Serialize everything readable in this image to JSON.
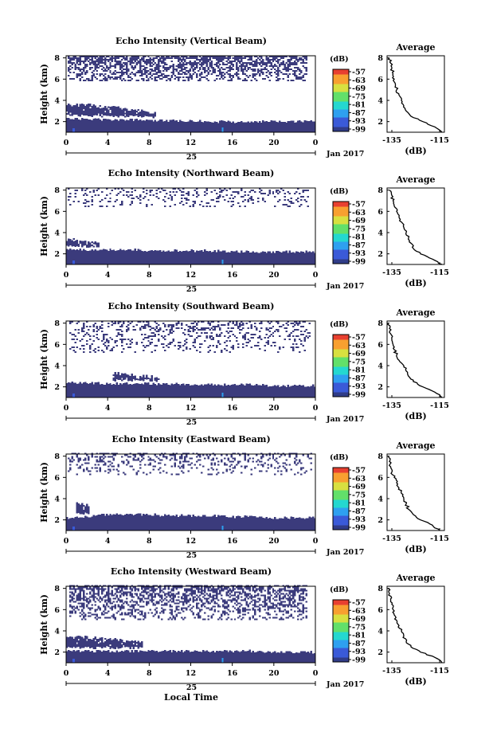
{
  "figure": {
    "xlabel": "Local Time",
    "date_label": "Jan 2017",
    "day_label": "25",
    "ylabel": "Height (km)",
    "x_ticks": [
      "0",
      "4",
      "8",
      "12",
      "16",
      "20",
      "0"
    ],
    "y_ticks": [
      "2",
      "4",
      "6",
      "8"
    ],
    "colorbar_unit": "(dB)",
    "colorbar_ticks": [
      "-57",
      "-63",
      "-69",
      "-75",
      "-81",
      "-87",
      "-93",
      "-99"
    ],
    "colorbar_colors": [
      "#303c88",
      "#3a5ad8",
      "#2ea0f0",
      "#24d8d0",
      "#62e06a",
      "#d8e040",
      "#f8a030",
      "#e84030"
    ],
    "echo_color": "#3b3b7c",
    "avg_title": "Average",
    "avg_xlabel": "(dB)",
    "avg_ticks": [
      "-135",
      "-115"
    ]
  },
  "chart_data": [
    {
      "type": "heatmap",
      "title": "Echo Intensity (Vertical Beam)",
      "xlabel": "Local Time",
      "ylabel": "Height (km)",
      "xlim": [
        0,
        24
      ],
      "ylim": [
        1,
        8.2
      ],
      "main_layer_top_km": [
        2.3,
        2.2,
        2.2,
        2.2,
        2.1,
        2.1,
        2.1,
        2.0,
        2.0,
        2.0,
        2.0,
        2.0,
        2.0
      ],
      "mid_layer": {
        "t_range": [
          0,
          8.6
        ],
        "top_km": [
          3.6,
          3.5,
          3.5,
          3.4,
          3.3,
          3.2,
          3.1,
          2.9,
          2.7
        ]
      },
      "upper_echo": {
        "height_km": [
          5.8,
          8.2
        ],
        "t_range": [
          0.2,
          23.2
        ],
        "coverage": 0.75
      },
      "profile": {
        "title": "Average",
        "xlabel": "(dB)",
        "xlim": [
          -137,
          -113
        ],
        "height_km": [
          1.0,
          1.5,
          2.0,
          2.5,
          3.0,
          3.5,
          4.0,
          4.5,
          5.0,
          5.5,
          6.0,
          6.5,
          7.0,
          7.5,
          8.0
        ],
        "values_db": [
          -114,
          -117,
          -122,
          -127,
          -129,
          -130,
          -131,
          -132,
          -133,
          -133.5,
          -134,
          -134.5,
          -135,
          -135.5,
          -136
        ]
      }
    },
    {
      "type": "heatmap",
      "title": "Echo Intensity (Northward Beam)",
      "xlabel": "Local Time",
      "ylabel": "Height (km)",
      "xlim": [
        0,
        24
      ],
      "ylim": [
        1,
        8.2
      ],
      "main_layer_top_km": [
        2.5,
        2.4,
        2.4,
        2.4,
        2.3,
        2.3,
        2.3,
        2.3,
        2.2,
        2.2,
        2.2,
        2.2,
        2.2
      ],
      "mid_layer": {
        "t_range": [
          0,
          3.2
        ],
        "top_km": [
          3.3,
          3.1,
          2.9
        ]
      },
      "upper_echo": {
        "height_km": [
          6.4,
          8.2
        ],
        "t_range": [
          0.2,
          23.4
        ],
        "coverage": 0.25
      },
      "profile": {
        "title": "Average",
        "xlabel": "(dB)",
        "xlim": [
          -137,
          -113
        ],
        "height_km": [
          1.0,
          1.5,
          2.0,
          2.5,
          3.0,
          3.5,
          4.0,
          4.5,
          5.0,
          5.5,
          6.0,
          6.5,
          7.0,
          7.5,
          8.0
        ],
        "values_db": [
          -114,
          -118,
          -123,
          -126,
          -127,
          -128,
          -129,
          -130,
          -131,
          -132,
          -133,
          -134,
          -134.5,
          -135,
          -136
        ]
      }
    },
    {
      "type": "heatmap",
      "title": "Echo Intensity (Southward Beam)",
      "xlabel": "Local Time",
      "ylabel": "Height (km)",
      "xlim": [
        0,
        24
      ],
      "ylim": [
        1,
        8.2
      ],
      "main_layer_top_km": [
        2.4,
        2.4,
        2.3,
        2.3,
        2.3,
        2.3,
        2.2,
        2.2,
        2.2,
        2.2,
        2.1,
        2.1,
        2.1
      ],
      "mid_layer": {
        "t_range": [
          4.5,
          9.0
        ],
        "top_km": [
          3.2,
          3.0,
          2.8
        ]
      },
      "upper_echo": {
        "height_km": [
          5.2,
          8.2
        ],
        "t_range": [
          0.3,
          23.5
        ],
        "coverage": 0.3
      },
      "profile": {
        "title": "Average",
        "xlabel": "(dB)",
        "xlim": [
          -137,
          -113
        ],
        "height_km": [
          1.0,
          1.5,
          2.0,
          2.5,
          3.0,
          3.5,
          4.0,
          4.5,
          5.0,
          5.5,
          6.0,
          6.5,
          7.0,
          7.5,
          8.0
        ],
        "values_db": [
          -114,
          -117,
          -122,
          -126,
          -128,
          -129,
          -130,
          -132,
          -133,
          -134,
          -134.5,
          -135,
          -135.5,
          -136,
          -136.5
        ]
      }
    },
    {
      "type": "heatmap",
      "title": "Echo Intensity (Eastward Beam)",
      "xlabel": "Local Time",
      "ylabel": "Height (km)",
      "xlim": [
        0,
        24
      ],
      "ylim": [
        1,
        8.2
      ],
      "main_layer_top_km": [
        2.2,
        2.3,
        2.5,
        2.5,
        2.5,
        2.4,
        2.4,
        2.4,
        2.3,
        2.3,
        2.2,
        2.2,
        2.2
      ],
      "mid_layer": {
        "t_range": [
          1.0,
          2.2
        ],
        "top_km": [
          3.6,
          3.2
        ]
      },
      "upper_echo": {
        "height_km": [
          6.2,
          8.2
        ],
        "t_range": [
          0.2,
          23.6
        ],
        "coverage": 0.3
      },
      "profile": {
        "title": "Average",
        "xlabel": "(dB)",
        "xlim": [
          -137,
          -113
        ],
        "height_km": [
          1.0,
          1.5,
          2.0,
          2.5,
          3.0,
          3.5,
          4.0,
          4.5,
          5.0,
          5.5,
          6.0,
          6.5,
          7.0,
          7.5,
          8.0
        ],
        "values_db": [
          -115,
          -118,
          -123,
          -126,
          -128,
          -129,
          -130,
          -131,
          -132,
          -133,
          -134,
          -135,
          -135.5,
          -136,
          -136.5
        ]
      }
    },
    {
      "type": "heatmap",
      "title": "Echo Intensity (Westward Beam)",
      "xlabel": "Local Time",
      "ylabel": "Height (km)",
      "xlim": [
        0,
        24
      ],
      "ylim": [
        1,
        8.2
      ],
      "main_layer_top_km": [
        2.1,
        2.1,
        2.1,
        2.1,
        2.1,
        2.1,
        2.1,
        2.1,
        2.1,
        2.1,
        2.0,
        2.0,
        2.0
      ],
      "mid_layer": {
        "t_range": [
          0,
          7.4
        ],
        "top_km": [
          3.4,
          3.3,
          3.2,
          3.0,
          2.8
        ]
      },
      "upper_echo": {
        "height_km": [
          5.0,
          8.2
        ],
        "t_range": [
          0.3,
          23.2
        ],
        "coverage": 0.6
      },
      "profile": {
        "title": "Average",
        "xlabel": "(dB)",
        "xlim": [
          -137,
          -113
        ],
        "height_km": [
          1.0,
          1.5,
          2.0,
          2.5,
          3.0,
          3.5,
          4.0,
          4.5,
          5.0,
          5.5,
          6.0,
          6.5,
          7.0,
          7.5,
          8.0
        ],
        "values_db": [
          -114,
          -117,
          -123,
          -127,
          -129,
          -130,
          -131,
          -132,
          -133,
          -134,
          -134.5,
          -135,
          -135.5,
          -136,
          -136.5
        ]
      }
    }
  ]
}
